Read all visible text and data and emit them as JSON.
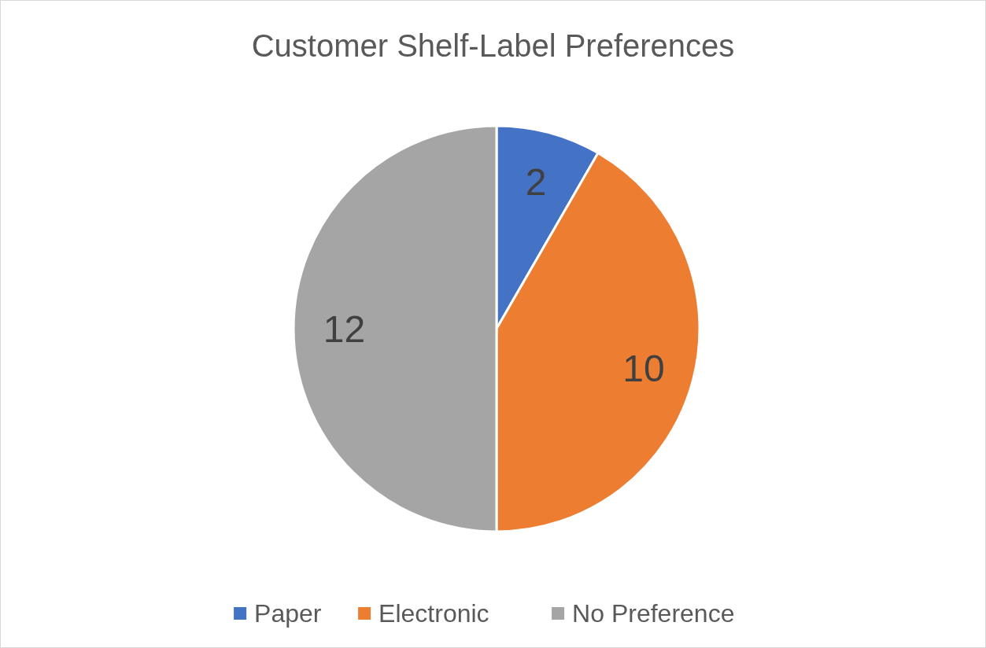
{
  "chart_data": {
    "type": "pie",
    "title": "Customer Shelf-Label Preferences",
    "categories": [
      "Paper",
      "Electronic",
      "No Preference"
    ],
    "values": [
      2,
      10,
      12
    ],
    "colors": [
      "#4472c4",
      "#ed7d31",
      "#a5a5a5"
    ],
    "data_labels": true,
    "legend": "bottom"
  }
}
